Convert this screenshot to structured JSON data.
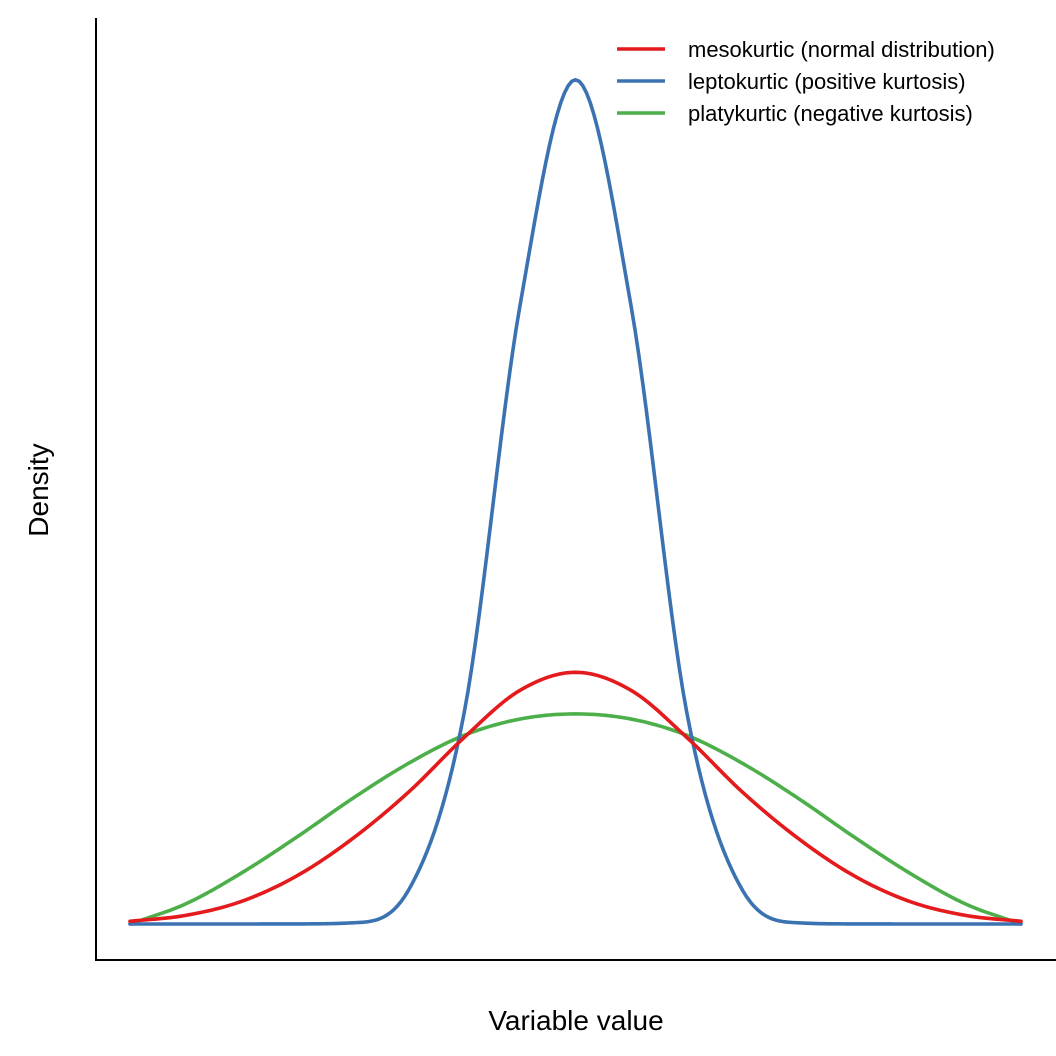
{
  "chart_data": {
    "type": "line",
    "title": "",
    "xlabel": "Variable value",
    "ylabel": "Density",
    "grid": false,
    "x_ticks_shown": false,
    "y_ticks_shown": false,
    "legend_position": "top-right",
    "xlim": [
      -4,
      4
    ],
    "ylim": [
      0,
      0.88
    ],
    "series": [
      {
        "name": "mesokurtic (normal distribution)",
        "color": "#e41a1c",
        "x": [
          -4.0,
          -3.5,
          -3.0,
          -2.5,
          -2.0,
          -1.5,
          -1.0,
          -0.5,
          0.0,
          0.5,
          1.0,
          1.5,
          2.0,
          2.5,
          3.0,
          3.5,
          4.0
        ],
        "y": [
          0.0027,
          0.0087,
          0.0228,
          0.0487,
          0.0863,
          0.133,
          0.1882,
          0.2357,
          0.254,
          0.2357,
          0.1882,
          0.133,
          0.0863,
          0.0487,
          0.0228,
          0.0087,
          0.0027
        ]
      },
      {
        "name": "leptokurtic (positive kurtosis)",
        "color": "#3b72b2",
        "x": [
          -4.0,
          -3.5,
          -3.0,
          -2.5,
          -2.0,
          -1.5,
          -1.0,
          -0.5,
          0.0,
          0.5,
          1.0,
          1.5,
          2.0,
          2.5,
          3.0,
          3.5,
          4.0
        ],
        "y": [
          0.0,
          0.0,
          0.0,
          0.0001,
          0.0012,
          0.034,
          0.213,
          0.623,
          0.852,
          0.623,
          0.213,
          0.034,
          0.0012,
          0.0001,
          0.0,
          0.0,
          0.0
        ]
      },
      {
        "name": "platykurtic (negative kurtosis)",
        "color": "#4daf4a",
        "x": [
          -4.0,
          -3.5,
          -3.0,
          -2.5,
          -2.0,
          -1.5,
          -1.0,
          -0.5,
          0.0,
          0.5,
          1.0,
          1.5,
          2.0,
          2.5,
          3.0,
          3.5,
          4.0
        ],
        "y": [
          0.0,
          0.0203,
          0.0514,
          0.0879,
          0.1268,
          0.1621,
          0.1904,
          0.2068,
          0.212,
          0.2068,
          0.1904,
          0.1621,
          0.1268,
          0.0879,
          0.0514,
          0.0203,
          0.0
        ]
      }
    ]
  }
}
